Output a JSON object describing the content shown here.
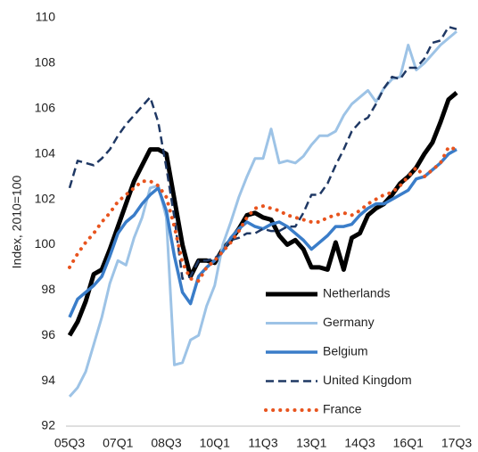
{
  "chart_data": {
    "type": "line",
    "y_label": "Index, 2010=100",
    "categories": [
      "05Q3",
      null,
      null,
      null,
      null,
      null,
      "07Q1",
      null,
      null,
      null,
      null,
      null,
      "08Q3",
      null,
      null,
      null,
      null,
      null,
      "10Q1",
      null,
      null,
      null,
      null,
      null,
      "11Q3",
      null,
      null,
      null,
      null,
      null,
      "13Q1",
      null,
      null,
      null,
      null,
      null,
      "14Q3",
      null,
      null,
      null,
      null,
      null,
      "16Q1",
      null,
      null,
      null,
      null,
      null,
      "17Q3"
    ],
    "ylim": [
      92,
      110
    ],
    "yticks": [
      92,
      94,
      96,
      98,
      100,
      102,
      104,
      106,
      108,
      110
    ],
    "grid": false,
    "legend": "lower right",
    "series": [
      {
        "name": "Netherlands",
        "color": "#000000",
        "line_style": "solid",
        "values": [
          96.0,
          96.6,
          97.5,
          98.7,
          98.9,
          99.8,
          100.8,
          101.8,
          102.8,
          103.5,
          104.2,
          104.2,
          104.0,
          102.0,
          100.0,
          98.6,
          99.3,
          99.3,
          99.2,
          99.8,
          100.2,
          100.7,
          101.3,
          101.4,
          101.2,
          101.1,
          100.4,
          100.0,
          100.2,
          99.8,
          99.0,
          99.0,
          98.9,
          100.1,
          98.9,
          100.3,
          100.5,
          101.3,
          101.6,
          101.8,
          102.2,
          102.7,
          103.0,
          103.4,
          104.0,
          104.5,
          105.4,
          106.4,
          106.7
        ]
      },
      {
        "name": "Germany",
        "color": "#9dc3e6",
        "line_style": "solid",
        "values": [
          93.3,
          93.7,
          94.4,
          95.6,
          96.8,
          98.3,
          99.3,
          99.1,
          100.3,
          101.2,
          102.5,
          102.6,
          101.2,
          94.7,
          94.8,
          95.8,
          96.0,
          97.3,
          98.2,
          100.0,
          101.0,
          102.1,
          103.0,
          103.8,
          103.8,
          105.1,
          103.6,
          103.7,
          103.6,
          103.9,
          104.4,
          104.8,
          104.8,
          105.0,
          105.7,
          106.2,
          106.5,
          106.8,
          106.3,
          106.9,
          107.3,
          107.4,
          108.8,
          107.7,
          108.0,
          108.4,
          108.8,
          109.1,
          109.4
        ]
      },
      {
        "name": "Belgium",
        "color": "#3a7dc9",
        "line_style": "solid",
        "values": [
          96.8,
          97.6,
          97.9,
          98.2,
          98.6,
          99.5,
          100.5,
          101.0,
          101.3,
          101.8,
          102.2,
          102.5,
          101.5,
          99.5,
          97.9,
          97.4,
          98.6,
          99.0,
          99.3,
          99.7,
          100.3,
          100.7,
          101.0,
          100.8,
          100.7,
          100.9,
          101.0,
          100.8,
          100.5,
          100.2,
          99.8,
          100.1,
          100.4,
          100.8,
          100.8,
          100.9,
          101.3,
          101.6,
          101.8,
          101.8,
          102.0,
          102.2,
          102.4,
          102.9,
          103.0,
          103.3,
          103.6,
          104.0,
          104.2
        ]
      },
      {
        "name": "United Kingdom",
        "color": "#1f3864",
        "line_style": "dashed",
        "values": [
          102.5,
          103.7,
          103.6,
          103.5,
          103.8,
          104.2,
          104.8,
          105.3,
          105.7,
          106.1,
          106.5,
          105.4,
          103.4,
          101.2,
          98.5,
          98.6,
          99.3,
          99.3,
          99.4,
          99.7,
          100.2,
          100.3,
          100.5,
          100.5,
          100.7,
          100.6,
          100.6,
          100.8,
          100.8,
          101.4,
          102.2,
          102.2,
          102.7,
          103.5,
          104.2,
          105.0,
          105.4,
          105.6,
          106.2,
          106.9,
          107.4,
          107.3,
          107.8,
          107.8,
          108.2,
          108.9,
          109.0,
          109.6,
          109.5
        ]
      },
      {
        "name": "France",
        "color": "#e8541e",
        "line_style": "dotted",
        "values": [
          99.0,
          99.6,
          100.1,
          100.5,
          101.0,
          101.4,
          101.9,
          102.2,
          102.5,
          102.8,
          102.8,
          102.6,
          102.1,
          100.8,
          99.2,
          98.5,
          98.4,
          99.0,
          99.3,
          99.7,
          100.1,
          100.6,
          101.2,
          101.6,
          101.7,
          101.6,
          101.5,
          101.3,
          101.2,
          101.1,
          101.0,
          101.0,
          101.2,
          101.3,
          101.4,
          101.3,
          101.5,
          101.8,
          102.0,
          102.2,
          102.3,
          102.6,
          103.0,
          103.4,
          103.0,
          103.3,
          103.6,
          104.3,
          104.2
        ]
      }
    ]
  }
}
